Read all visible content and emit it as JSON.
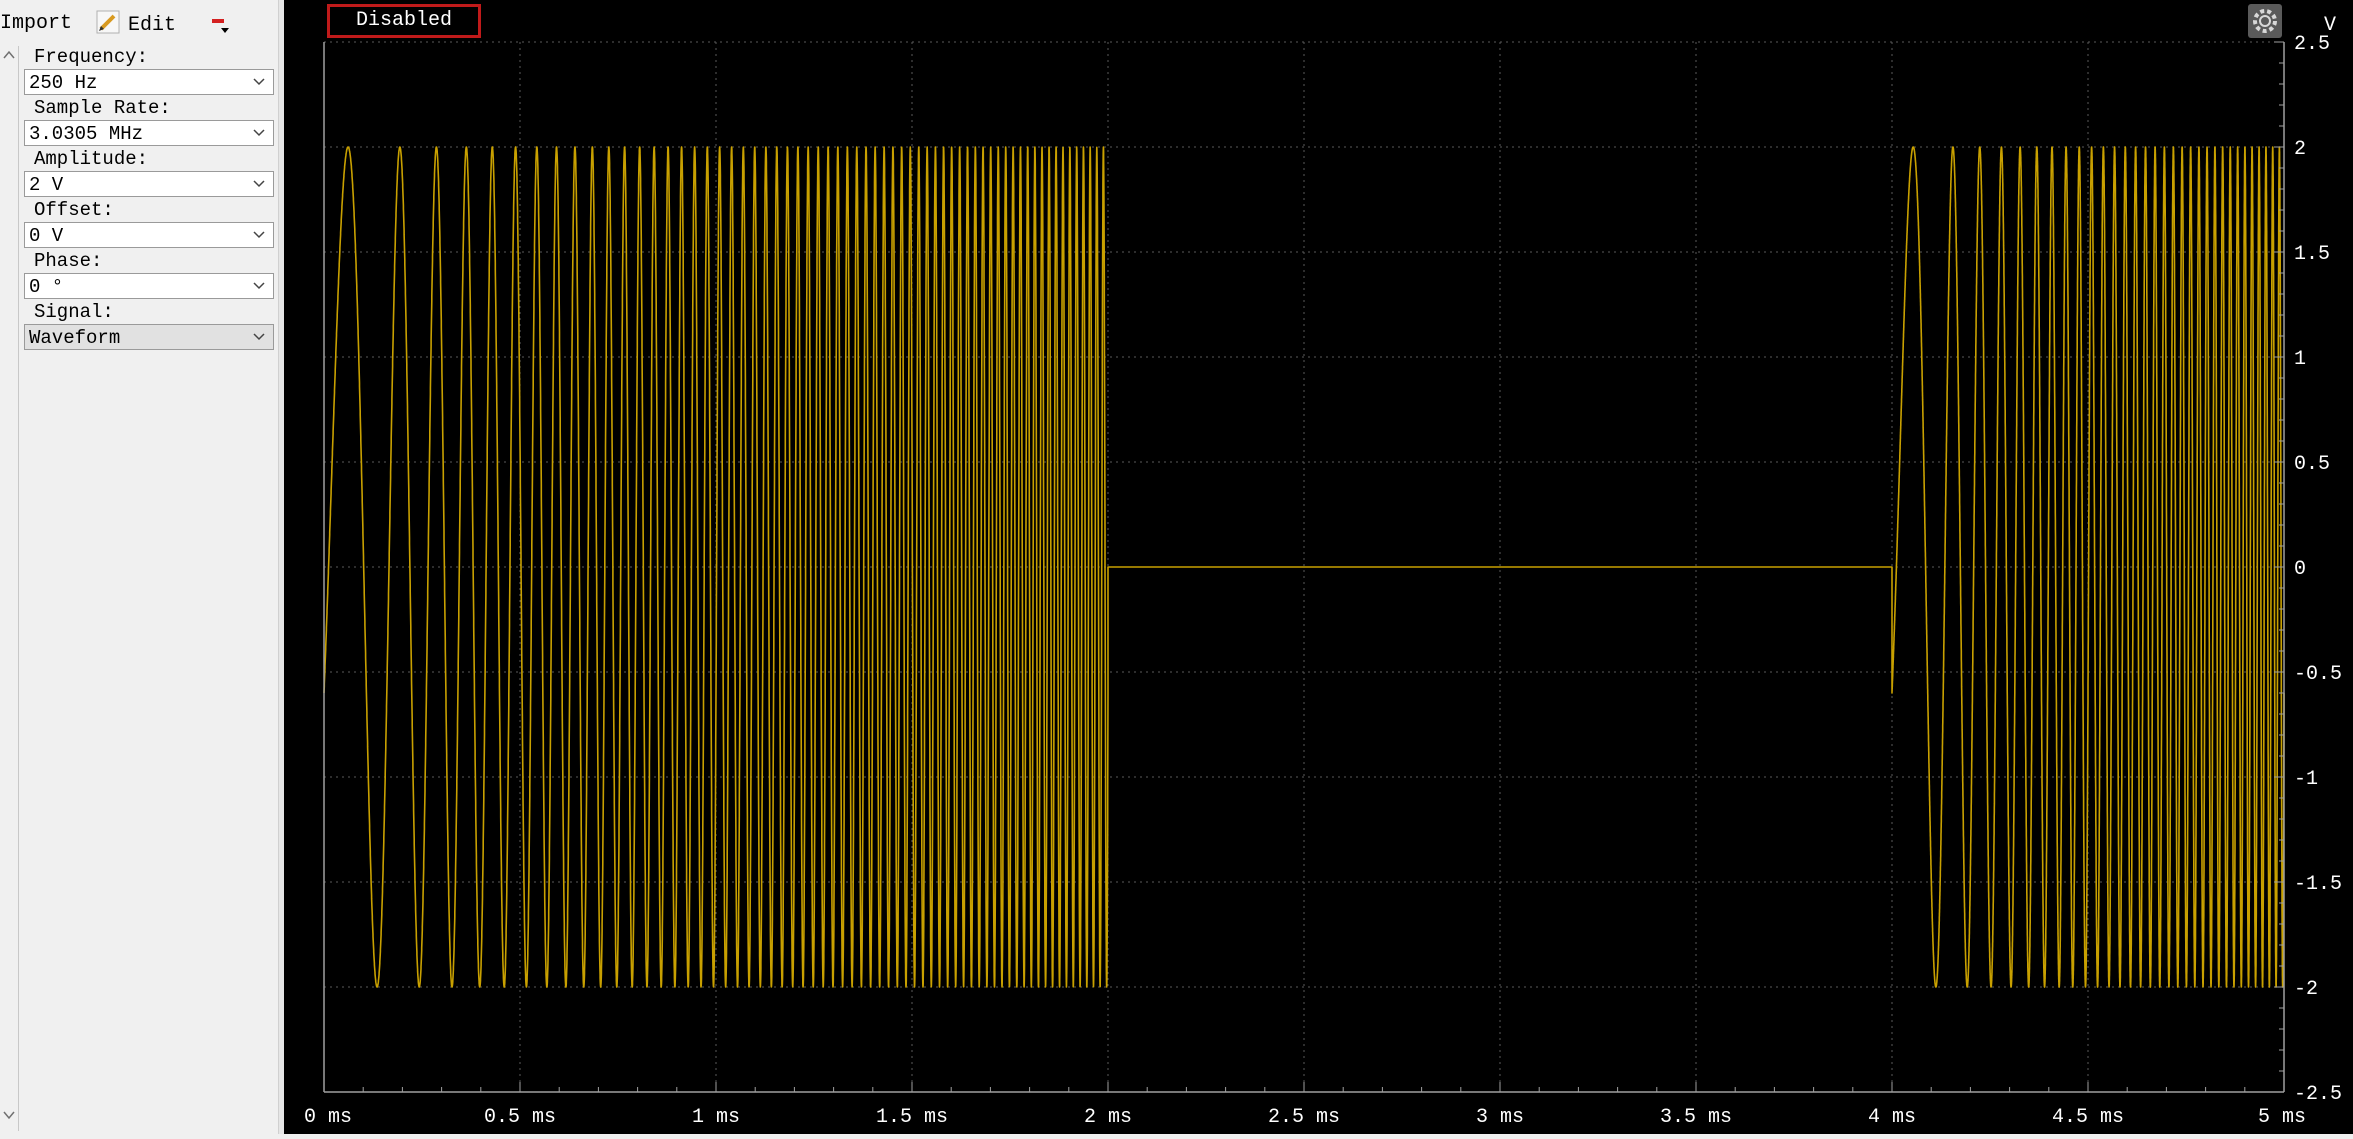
{
  "toolbar": {
    "import_label": "Import",
    "edit_label": "Edit"
  },
  "params": [
    {
      "label": "Frequency:",
      "value": "250 Hz"
    },
    {
      "label": "Sample Rate:",
      "value": "3.0305 MHz"
    },
    {
      "label": "Amplitude:",
      "value": "2 V"
    },
    {
      "label": "Offset:",
      "value": "0 V"
    },
    {
      "label": "Phase:",
      "value": "0 °"
    },
    {
      "label": "Signal:",
      "value": "Waveform"
    }
  ],
  "plot": {
    "status_label": "Disabled",
    "y_unit": "V",
    "trace_color": "#c8a000",
    "grid_color": "#5a5a5a",
    "axis_color": "#a0a0a0"
  },
  "chart_data": {
    "type": "line",
    "xlabel": "",
    "ylabel": "V",
    "xlim": [
      0,
      5
    ],
    "ylim": [
      -2.5,
      2.5
    ],
    "x_ticks": [
      "0 ms",
      "0.5 ms",
      "1 ms",
      "1.5 ms",
      "2 ms",
      "2.5 ms",
      "3 ms",
      "3.5 ms",
      "4 ms",
      "4.5 ms",
      "5 ms"
    ],
    "x_tick_values": [
      0,
      0.5,
      1,
      1.5,
      2,
      2.5,
      3,
      3.5,
      4,
      4.5,
      5
    ],
    "y_ticks": [
      "2.5",
      "2",
      "1.5",
      "1",
      "0.5",
      "0",
      "-0.5",
      "-1",
      "-1.5",
      "-2",
      "-2.5"
    ],
    "y_tick_values": [
      2.5,
      2,
      1.5,
      1,
      0.5,
      0,
      -0.5,
      -1,
      -1.5,
      -2,
      -2.5
    ],
    "grid": true,
    "series": [
      {
        "style": "chirp",
        "segments": [
          {
            "x_start": 0,
            "x_end": 2,
            "kind": "chirp",
            "amplitude": 2,
            "start_value": -0.6,
            "freq_start_khz": 4,
            "freq_end_khz": 60
          },
          {
            "x_start": 2,
            "x_end": 4,
            "kind": "flat",
            "value": 0
          },
          {
            "x_start": 4,
            "x_end": 5,
            "kind": "chirp",
            "amplitude": 2,
            "start_value": -0.6,
            "freq_start_khz": 4,
            "freq_end_khz": 60
          }
        ]
      }
    ]
  }
}
